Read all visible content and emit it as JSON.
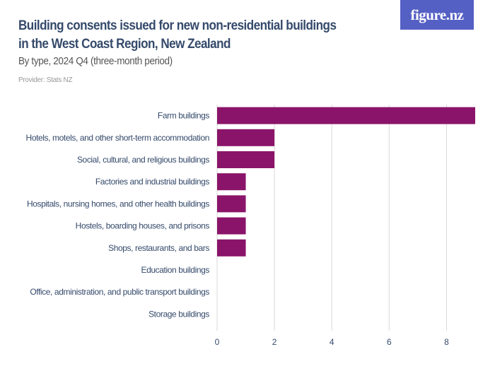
{
  "header": {
    "title": "Building consents issued for new non-residential buildings in the West Coast Region, New Zealand",
    "subtitle": "By type, 2024 Q4 (three-month period)",
    "provider": "Provider: Stats NZ",
    "logo": "figure.nz"
  },
  "chart_data": {
    "type": "bar",
    "orientation": "horizontal",
    "title": "Building consents issued for new non-residential buildings in the West Coast Region, New Zealand",
    "subtitle": "By type, 2024 Q4 (three-month period)",
    "categories": [
      "Farm buildings",
      "Hotels, motels, and other short-term accommodation",
      "Social, cultural, and religious buildings",
      "Factories and industrial buildings",
      "Hospitals, nursing homes, and other health buildings",
      "Hostels, boarding houses, and prisons",
      "Shops, restaurants, and bars",
      "Education buildings",
      "Office, administration, and public transport buildings",
      "Storage buildings"
    ],
    "values": [
      9,
      2,
      2,
      1,
      1,
      1,
      1,
      0,
      0,
      0
    ],
    "xlim": [
      0,
      9
    ],
    "xticks": [
      0,
      2,
      4,
      6,
      8
    ],
    "grid": true,
    "bar_color": "#8a1469"
  }
}
